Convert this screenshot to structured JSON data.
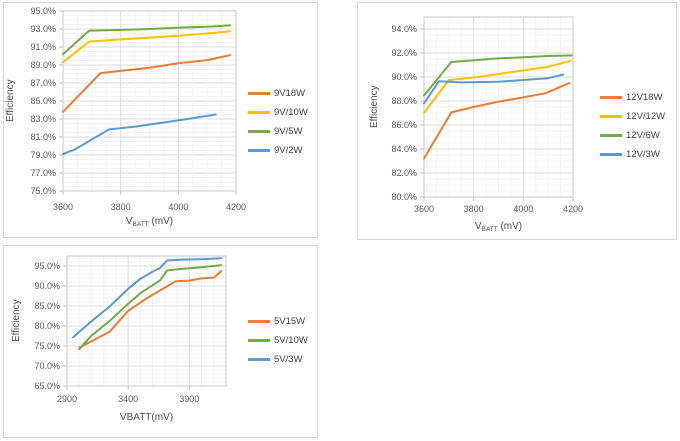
{
  "page": {
    "background": "#ffffff"
  },
  "colors": {
    "orange": "#ED7D31",
    "yellow": "#FFC000",
    "green": "#70AD47",
    "blue": "#5B9BD5",
    "grid_major": "#dedede",
    "grid_minor": "#f3f3f3",
    "plot_border": "#c9c9c9",
    "tick_mark": "#bfbfbf"
  },
  "chart_data": [
    {
      "id": "chart-9v",
      "type": "line",
      "title": "",
      "xlabel": {
        "pre": "V",
        "sub": "BATT",
        "post": " (mV)"
      },
      "ylabel": "Efficiency",
      "xlim": [
        3600,
        4200
      ],
      "ylim": [
        75,
        95
      ],
      "grid": true,
      "legend_position": "right",
      "xticks": {
        "values": [
          3600,
          3800,
          4000,
          4200
        ],
        "labels": [
          "3600",
          "3800",
          "4000",
          "4200"
        ]
      },
      "yticks": {
        "values": [
          95,
          93,
          91,
          89,
          87,
          85,
          83,
          81,
          79,
          77,
          75
        ],
        "labels": [
          "95.0%",
          "93.0%",
          "91.0%",
          "89.0%",
          "87.0%",
          "85.0%",
          "83.0%",
          "81.0%",
          "79.0%",
          "77.0%",
          "75.0%"
        ]
      },
      "minor": {
        "x": 50,
        "y": 0.5
      },
      "series": [
        {
          "name": "9V18W",
          "color": "#ED7D31",
          "points": [
            [
              3600,
              83.8
            ],
            [
              3730,
              88.1
            ],
            [
              3800,
              88.35
            ],
            [
              3900,
              88.7
            ],
            [
              4000,
              89.2
            ],
            [
              4100,
              89.55
            ],
            [
              4180,
              90.1
            ]
          ]
        },
        {
          "name": "9V/10W",
          "color": "#FFC000",
          "points": [
            [
              3600,
              89.3
            ],
            [
              3690,
              91.6
            ],
            [
              3800,
              91.85
            ],
            [
              3900,
              92.05
            ],
            [
              4000,
              92.25
            ],
            [
              4100,
              92.5
            ],
            [
              4180,
              92.75
            ]
          ]
        },
        {
          "name": "9V/5W",
          "color": "#70AD47",
          "points": [
            [
              3600,
              90.2
            ],
            [
              3690,
              92.8
            ],
            [
              3800,
              92.9
            ],
            [
              3900,
              93.0
            ],
            [
              4000,
              93.15
            ],
            [
              4100,
              93.25
            ],
            [
              4180,
              93.4
            ]
          ]
        },
        {
          "name": "9V/2W",
          "color": "#5B9BD5",
          "points": [
            [
              3600,
              79.1
            ],
            [
              3640,
              79.6
            ],
            [
              3760,
              81.85
            ],
            [
              3850,
              82.15
            ],
            [
              4000,
              82.85
            ],
            [
              4130,
              83.5
            ]
          ]
        }
      ]
    },
    {
      "id": "chart-12v",
      "type": "line",
      "title": "",
      "xlabel": {
        "pre": "V",
        "sub": "BATT",
        "post": " (mV)"
      },
      "ylabel": "Efficiency",
      "xlim": [
        3600,
        4200
      ],
      "ylim": [
        80,
        95
      ],
      "grid": true,
      "legend_position": "right",
      "xticks": {
        "values": [
          3600,
          3800,
          4000,
          4200
        ],
        "labels": [
          "3600",
          "3800",
          "4000",
          "4200"
        ]
      },
      "yticks": {
        "values": [
          94,
          92,
          90,
          88,
          86,
          84,
          82,
          80
        ],
        "labels": [
          "94.0%",
          "92.0%",
          "90.0%",
          "88.0%",
          "86.0%",
          "84.0%",
          "82.0%",
          "80.0%"
        ]
      },
      "minor": {
        "x": 50,
        "y": 0.5
      },
      "series": [
        {
          "name": "12V18W",
          "color": "#ED7D31",
          "points": [
            [
              3600,
              83.2
            ],
            [
              3710,
              87.05
            ],
            [
              3800,
              87.5
            ],
            [
              3900,
              87.95
            ],
            [
              4000,
              88.3
            ],
            [
              4090,
              88.65
            ],
            [
              4185,
              89.5
            ]
          ]
        },
        {
          "name": "12V/12W",
          "color": "#FFC000",
          "points": [
            [
              3600,
              87.0
            ],
            [
              3700,
              89.75
            ],
            [
              3800,
              89.95
            ],
            [
              3900,
              90.25
            ],
            [
              4000,
              90.55
            ],
            [
              4100,
              90.85
            ],
            [
              4190,
              91.35
            ]
          ]
        },
        {
          "name": "12V/6W",
          "color": "#70AD47",
          "points": [
            [
              3600,
              88.45
            ],
            [
              3710,
              91.25
            ],
            [
              3800,
              91.4
            ],
            [
              3900,
              91.55
            ],
            [
              4000,
              91.65
            ],
            [
              4100,
              91.75
            ],
            [
              4195,
              91.8
            ]
          ]
        },
        {
          "name": "12V/3W",
          "color": "#5B9BD5",
          "points": [
            [
              3600,
              87.8
            ],
            [
              3660,
              89.65
            ],
            [
              3750,
              89.55
            ],
            [
              3900,
              89.6
            ],
            [
              4000,
              89.75
            ],
            [
              4100,
              89.9
            ],
            [
              4160,
              90.2
            ]
          ]
        }
      ]
    },
    {
      "id": "chart-5v",
      "type": "line",
      "title": "",
      "xlabel": {
        "pre": "VBATT(mV)",
        "sub": "",
        "post": ""
      },
      "ylabel": "Efficiency",
      "xlim": [
        2900,
        4200
      ],
      "ylim": [
        65,
        97.5
      ],
      "grid": true,
      "legend_position": "right",
      "xticks": {
        "values": [
          2900,
          3400,
          3900
        ],
        "labels": [
          "2900",
          "3400",
          "3900"
        ]
      },
      "yticks": {
        "values": [
          95,
          90,
          85,
          80,
          75,
          70,
          65
        ],
        "labels": [
          "95.0%",
          "90.0%",
          "85.0%",
          "80.0%",
          "75.0%",
          "70.0%",
          "65.0%"
        ]
      },
      "minor": {
        "x": 100,
        "y": 1
      },
      "series": [
        {
          "name": "5V15W",
          "color": "#ED7D31",
          "points": [
            [
              3000,
              74.6
            ],
            [
              3100,
              76.2
            ],
            [
              3250,
              78.6
            ],
            [
              3400,
              83.8
            ],
            [
              3550,
              86.9
            ],
            [
              3700,
              89.6
            ],
            [
              3790,
              91.2
            ],
            [
              3900,
              91.35
            ],
            [
              4000,
              91.9
            ],
            [
              4100,
              92.1
            ],
            [
              4160,
              93.7
            ]
          ]
        },
        {
          "name": "5V/10W",
          "color": "#70AD47",
          "points": [
            [
              3000,
              74.2
            ],
            [
              3100,
              77.6
            ],
            [
              3250,
              81.3
            ],
            [
              3400,
              85.6
            ],
            [
              3500,
              88.2
            ],
            [
              3600,
              90.2
            ],
            [
              3660,
              91.4
            ],
            [
              3720,
              93.9
            ],
            [
              3850,
              94.3
            ],
            [
              4000,
              94.7
            ],
            [
              4160,
              95.2
            ]
          ]
        },
        {
          "name": "5V/3W",
          "color": "#5B9BD5",
          "points": [
            [
              2950,
              77.2
            ],
            [
              3100,
              81.2
            ],
            [
              3250,
              84.9
            ],
            [
              3400,
              89.3
            ],
            [
              3500,
              91.8
            ],
            [
              3600,
              93.6
            ],
            [
              3660,
              94.5
            ],
            [
              3720,
              96.4
            ],
            [
              3850,
              96.6
            ],
            [
              4000,
              96.7
            ],
            [
              4160,
              96.95
            ]
          ]
        }
      ]
    }
  ]
}
